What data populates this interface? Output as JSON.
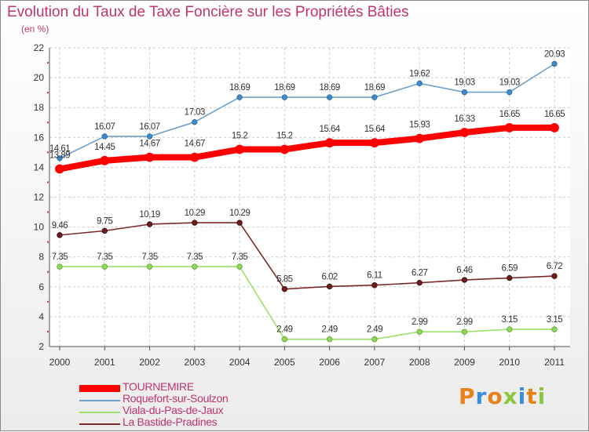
{
  "header": {
    "title": "Evolution du Taux de Taxe Foncière sur les Propriétés Bâties",
    "subtitle": "(en %)"
  },
  "logo": {
    "text": "Proxiti",
    "colors": [
      "#e8821a",
      "#3a8ed6",
      "#e8821a",
      "#8cc63f",
      "#3a8ed6",
      "#e8821a",
      "#8cc63f"
    ]
  },
  "chart_data": {
    "type": "line",
    "x": [
      "2000",
      "2001",
      "2002",
      "2003",
      "2004",
      "2005",
      "2006",
      "2007",
      "2008",
      "2009",
      "2010",
      "2011"
    ],
    "ylim": [
      2,
      22
    ],
    "yticks": [
      "2",
      "4",
      "6",
      "8",
      "10",
      "12",
      "14",
      "16",
      "18",
      "20",
      "22"
    ],
    "grid": true,
    "legend_position": "bottom-left",
    "series": [
      {
        "name": "TOURNEMIRE",
        "color": "#ff0000",
        "values": [
          13.89,
          14.45,
          14.67,
          14.67,
          15.2,
          15.2,
          15.64,
          15.64,
          15.93,
          16.33,
          16.65,
          16.65
        ],
        "labels": [
          "13.89",
          "14.45",
          "14.67",
          "14.67",
          "15.2",
          "15.2",
          "15.64",
          "15.64",
          "15.93",
          "16.33",
          "16.65",
          "16.65"
        ]
      },
      {
        "name": "Roquefort-sur-Soulzon",
        "color": "#6fa0cc",
        "values": [
          14.61,
          16.07,
          16.07,
          17.03,
          18.69,
          18.69,
          18.69,
          18.69,
          19.62,
          19.03,
          19.03,
          20.93
        ],
        "labels": [
          "14.61",
          "16.07",
          "16.07",
          "17.03",
          "18.69",
          "18.69",
          "18.69",
          "18.69",
          "19.62",
          "19.03",
          "19.03",
          "20.93"
        ]
      },
      {
        "name": "Viala-du-Pas-de-Jaux",
        "color": "#9be06a",
        "values": [
          7.35,
          7.35,
          7.35,
          7.35,
          7.35,
          2.49,
          2.49,
          2.49,
          2.99,
          2.99,
          3.15,
          3.15
        ],
        "labels": [
          "7.35",
          "7.35",
          "7.35",
          "7.35",
          "7.35",
          "2.49",
          "2.49",
          "2.49",
          "2.99",
          "2.99",
          "3.15",
          "3.15"
        ]
      },
      {
        "name": "La Bastide-Pradines",
        "color": "#7a2a2a",
        "values": [
          9.46,
          9.75,
          10.19,
          10.29,
          10.29,
          5.85,
          6.02,
          6.11,
          6.27,
          6.46,
          6.59,
          6.72
        ],
        "labels": [
          "9.46",
          "9.75",
          "10.19",
          "10.29",
          "10.29",
          "5.85",
          "6.02",
          "6.11",
          "6.27",
          "6.46",
          "6.59",
          "6.72"
        ]
      }
    ]
  }
}
